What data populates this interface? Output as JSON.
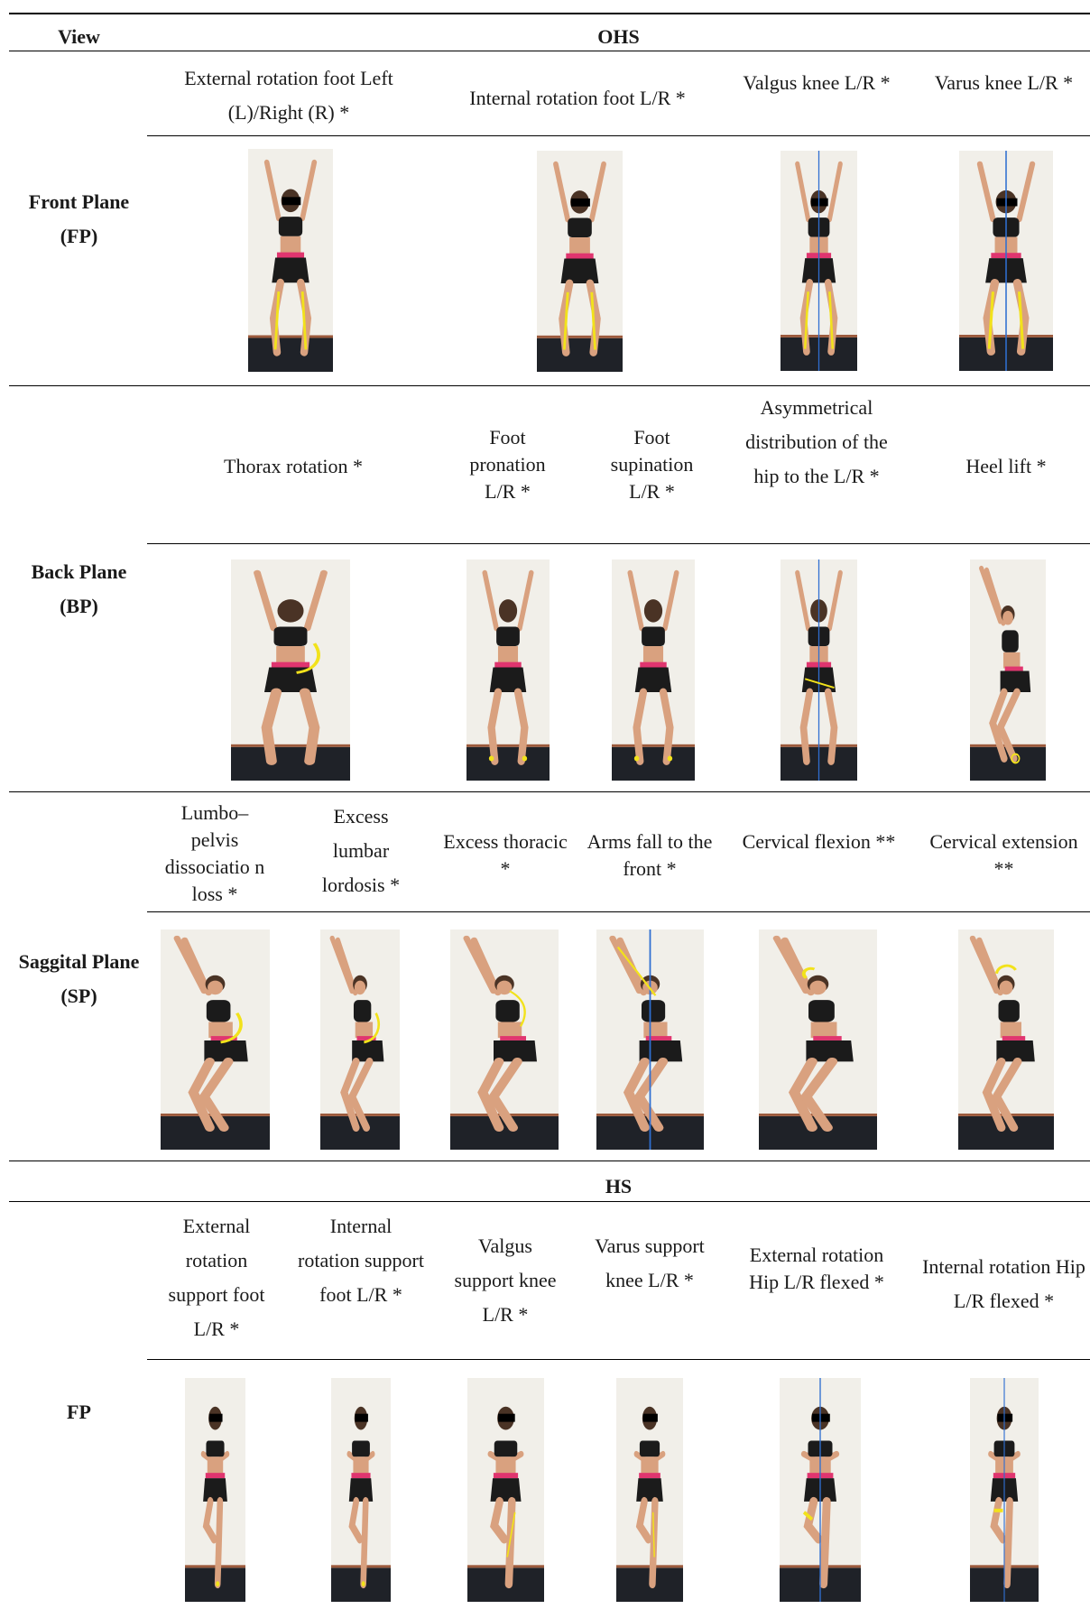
{
  "header": {
    "view": "View",
    "ohs": "OHS",
    "hs": "HS"
  },
  "fp": {
    "label": "Front Plane (FP)",
    "items": [
      "External rotation foot Left (L)/Right (R) *",
      "Internal rotation foot L/R *",
      "Valgus knee L/R *",
      "Varus knee L/R *"
    ]
  },
  "bp": {
    "label": "Back Plane (BP)",
    "items": [
      "Thorax rotation *",
      "Foot pronation L/R *",
      "Foot supination L/R *",
      "Asymmetrical distribution of the hip to the L/R *",
      "Heel lift *"
    ]
  },
  "sp": {
    "label": "Saggital Plane (SP)",
    "items": [
      "Lumbo–pelvis dissociatio n loss *",
      "Excess lumbar lordosis *",
      "Excess thoracic *",
      "Arms fall to the front *",
      "Cervical flexion **",
      "Cervical extension **"
    ]
  },
  "hs_fp": {
    "label": "FP",
    "items": [
      "External rotation support foot L/R *",
      "Internal rotation support foot L/R *",
      "Valgus support knee L/R *",
      "Varus support knee L/R *",
      "External rotation Hip L/R flexed *",
      "Internal rotation Hip L/R flexed *"
    ]
  },
  "colors": {
    "wall": "#f1efe9",
    "floor": "#1f2228",
    "top": "#1b1b1b",
    "shorts": "#1b1b1b",
    "waistband": "#e0356f",
    "skin": "#d9a17f",
    "annotation": "#f2e21b",
    "guide": "#2f6fd1"
  },
  "icons": [
    "person-photo",
    "overhead-squat-front",
    "overhead-squat-back",
    "overhead-squat-side",
    "hurdle-step-front"
  ]
}
